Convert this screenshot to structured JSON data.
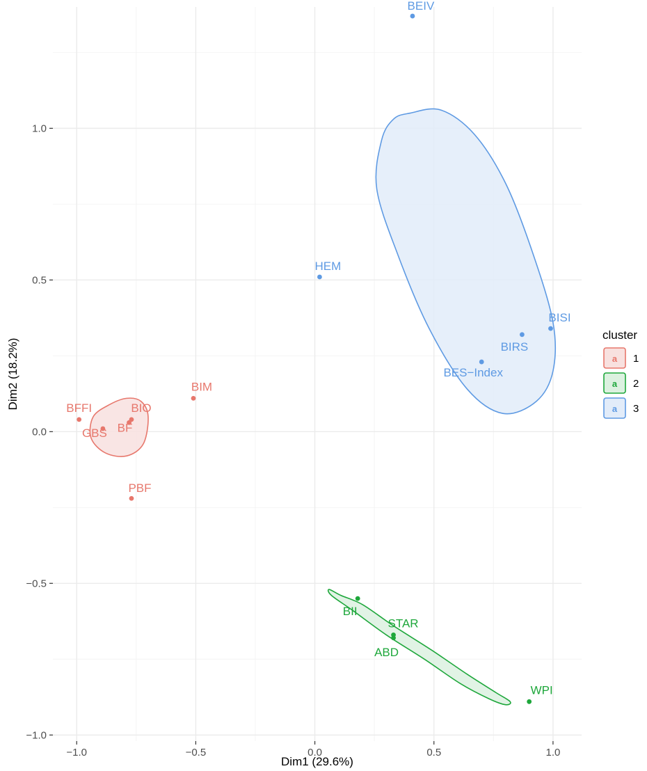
{
  "chart_data": {
    "type": "scatter",
    "xlabel": "Dim1 (29.6%)",
    "ylabel": "Dim2 (18.2%)",
    "xlim": [
      -1.1,
      1.12
    ],
    "ylim": [
      -1.02,
      1.4
    ],
    "x_ticks": [
      -1.0,
      -0.5,
      0.0,
      0.5,
      1.0
    ],
    "x_tick_labels": [
      "−1.0",
      "−0.5",
      "0.0",
      "0.5",
      "1.0"
    ],
    "y_ticks": [
      -1.0,
      -0.5,
      0.0,
      0.5,
      1.0
    ],
    "y_tick_labels": [
      "−1.0",
      "−0.5",
      "0.0",
      "0.5",
      "1.0"
    ],
    "grid": true,
    "background": "#ffffff",
    "grid_major_color": "#ebebeb",
    "grid_minor_color": "#f4f4f4",
    "legend": {
      "title": "cluster",
      "position": "right",
      "key_glyph": "a"
    },
    "series": [
      {
        "name": "1",
        "color": "#e7776c",
        "fill": "#f8e1df",
        "points": [
          {
            "label": "BFFI",
            "x": -0.99,
            "y": 0.04
          },
          {
            "label": "BIO",
            "x": -0.77,
            "y": 0.04
          },
          {
            "label": "BF",
            "x": -0.78,
            "y": 0.03
          },
          {
            "label": "GBS",
            "x": -0.89,
            "y": 0.01
          },
          {
            "label": "BIM",
            "x": -0.51,
            "y": 0.11
          },
          {
            "label": "PBF",
            "x": -0.77,
            "y": -0.22
          }
        ],
        "ellipse_polygon": [
          [
            -0.73,
            0.1
          ],
          [
            -0.7,
            0.05
          ],
          [
            -0.72,
            -0.04
          ],
          [
            -0.79,
            -0.08
          ],
          [
            -0.88,
            -0.07
          ],
          [
            -0.94,
            -0.02
          ],
          [
            -0.93,
            0.05
          ],
          [
            -0.86,
            0.09
          ],
          [
            -0.79,
            0.11
          ]
        ]
      },
      {
        "name": "2",
        "color": "#1ea73b",
        "fill": "#dcf1e0",
        "points": [
          {
            "label": "BII",
            "x": 0.18,
            "y": -0.55
          },
          {
            "label": "STAR",
            "x": 0.33,
            "y": -0.67
          },
          {
            "label": "ABD",
            "x": 0.33,
            "y": -0.68
          },
          {
            "label": "WPI",
            "x": 0.9,
            "y": -0.89
          }
        ],
        "ellipse_polygon": [
          [
            0.06,
            -0.52
          ],
          [
            0.11,
            -0.54
          ],
          [
            0.2,
            -0.57
          ],
          [
            0.33,
            -0.64
          ],
          [
            0.49,
            -0.72
          ],
          [
            0.64,
            -0.8
          ],
          [
            0.76,
            -0.86
          ],
          [
            0.82,
            -0.89
          ],
          [
            0.8,
            -0.9
          ],
          [
            0.73,
            -0.88
          ],
          [
            0.61,
            -0.83
          ],
          [
            0.46,
            -0.75
          ],
          [
            0.3,
            -0.67
          ],
          [
            0.16,
            -0.59
          ],
          [
            0.07,
            -0.54
          ]
        ]
      },
      {
        "name": "3",
        "color": "#5e9ae3",
        "fill": "#e2ecf9",
        "points": [
          {
            "label": "BEIV",
            "x": 0.41,
            "y": 1.37
          },
          {
            "label": "HEM",
            "x": 0.02,
            "y": 0.51
          },
          {
            "label": "BISI",
            "x": 0.99,
            "y": 0.34
          },
          {
            "label": "BIRS",
            "x": 0.87,
            "y": 0.32
          },
          {
            "label": "BES−Index",
            "x": 0.7,
            "y": 0.23
          }
        ],
        "ellipse_polygon": [
          [
            0.4,
            1.05
          ],
          [
            0.53,
            1.06
          ],
          [
            0.67,
            0.98
          ],
          [
            0.8,
            0.82
          ],
          [
            0.91,
            0.6
          ],
          [
            1.0,
            0.36
          ],
          [
            1.0,
            0.2
          ],
          [
            0.93,
            0.1
          ],
          [
            0.79,
            0.06
          ],
          [
            0.64,
            0.14
          ],
          [
            0.48,
            0.34
          ],
          [
            0.35,
            0.58
          ],
          [
            0.26,
            0.8
          ],
          [
            0.28,
            0.96
          ],
          [
            0.33,
            1.03
          ]
        ]
      }
    ]
  }
}
